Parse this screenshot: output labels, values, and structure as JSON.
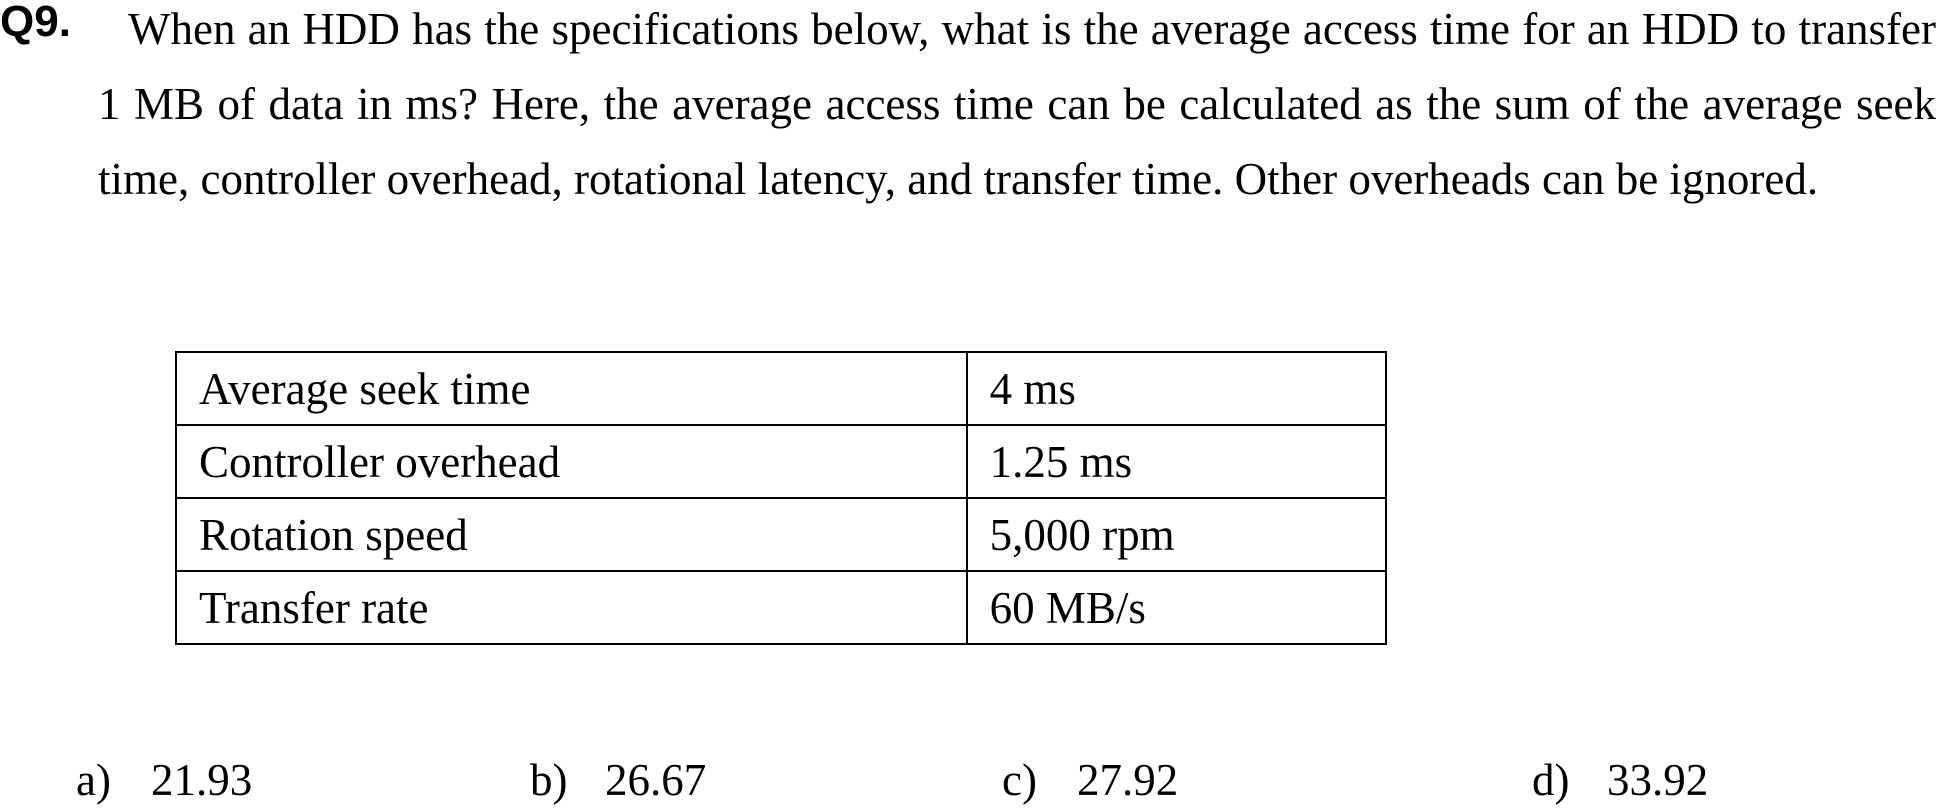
{
  "question": {
    "number": "Q9.",
    "text": "When an HDD has the specifications below, what is the average access time for an HDD to transfer 1 MB of data in ms? Here, the average access time can be calculated as the sum of the average seek time, controller overhead, rotational latency, and transfer time. Other overheads can be ignored."
  },
  "specs_table": {
    "rows": [
      {
        "label": "Average seek time",
        "value": "4 ms"
      },
      {
        "label": "Controller overhead",
        "value": "1.25 ms"
      },
      {
        "label": "Rotation speed",
        "value": "5,000 rpm"
      },
      {
        "label": "Transfer rate",
        "value": "60 MB/s"
      }
    ]
  },
  "choices": [
    {
      "letter": "a)",
      "value": "21.93"
    },
    {
      "letter": "b)",
      "value": "26.67"
    },
    {
      "letter": "c)",
      "value": "27.92"
    },
    {
      "letter": "d)",
      "value": "33.92"
    }
  ]
}
